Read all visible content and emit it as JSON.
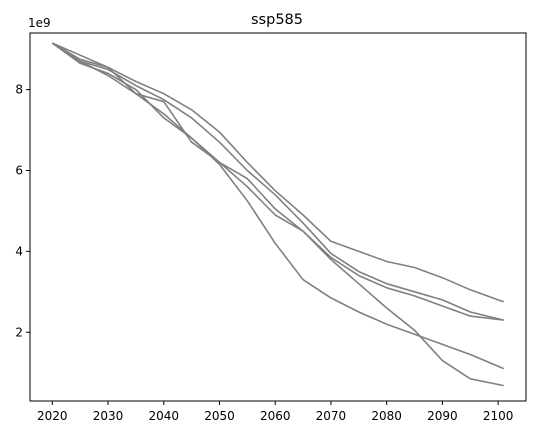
{
  "chart_data": {
    "type": "line",
    "title": "ssp585",
    "xlabel": "",
    "ylabel": "",
    "y_offset_label": "1e9",
    "xlim": [
      2016,
      2105
    ],
    "ylim": [
      0.3,
      9.4
    ],
    "x_ticks": [
      2020,
      2030,
      2040,
      2050,
      2060,
      2070,
      2080,
      2090,
      2100
    ],
    "y_ticks": [
      2,
      4,
      6,
      8
    ],
    "x_tick_labels": [
      "2020",
      "2030",
      "2040",
      "2050",
      "2060",
      "2070",
      "2080",
      "2090",
      "2100"
    ],
    "y_tick_labels": [
      "2",
      "4",
      "6",
      "8"
    ],
    "grid": false,
    "legend": "none",
    "line_color": "#808080",
    "x": [
      2020,
      2025,
      2030,
      2035,
      2040,
      2045,
      2050,
      2055,
      2060,
      2065,
      2070,
      2075,
      2080,
      2085,
      2090,
      2095,
      2101
    ],
    "series": [
      {
        "values": [
          9.15,
          8.85,
          8.55,
          8.2,
          7.9,
          7.5,
          6.95,
          6.2,
          5.5,
          4.9,
          4.25,
          4.0,
          3.75,
          3.6,
          3.35,
          3.05,
          2.75
        ]
      },
      {
        "values": [
          9.15,
          8.7,
          8.5,
          8.1,
          7.75,
          7.3,
          6.7,
          6.0,
          5.4,
          4.7,
          3.95,
          3.5,
          3.2,
          3.0,
          2.8,
          2.5,
          2.3
        ]
      },
      {
        "values": [
          9.15,
          8.65,
          8.4,
          8.0,
          7.3,
          6.8,
          6.2,
          5.8,
          5.05,
          4.5,
          3.85,
          3.4,
          3.1,
          2.9,
          2.65,
          2.4,
          2.3
        ]
      },
      {
        "values": [
          9.15,
          8.7,
          8.35,
          7.9,
          7.4,
          6.8,
          6.15,
          5.25,
          4.2,
          3.3,
          2.85,
          2.5,
          2.2,
          1.95,
          1.7,
          1.45,
          1.1
        ]
      },
      {
        "values": [
          9.15,
          8.75,
          8.55,
          7.9,
          7.7,
          6.7,
          6.2,
          5.6,
          4.9,
          4.5,
          3.8,
          3.2,
          2.6,
          2.05,
          1.3,
          0.85,
          0.68
        ]
      }
    ]
  }
}
